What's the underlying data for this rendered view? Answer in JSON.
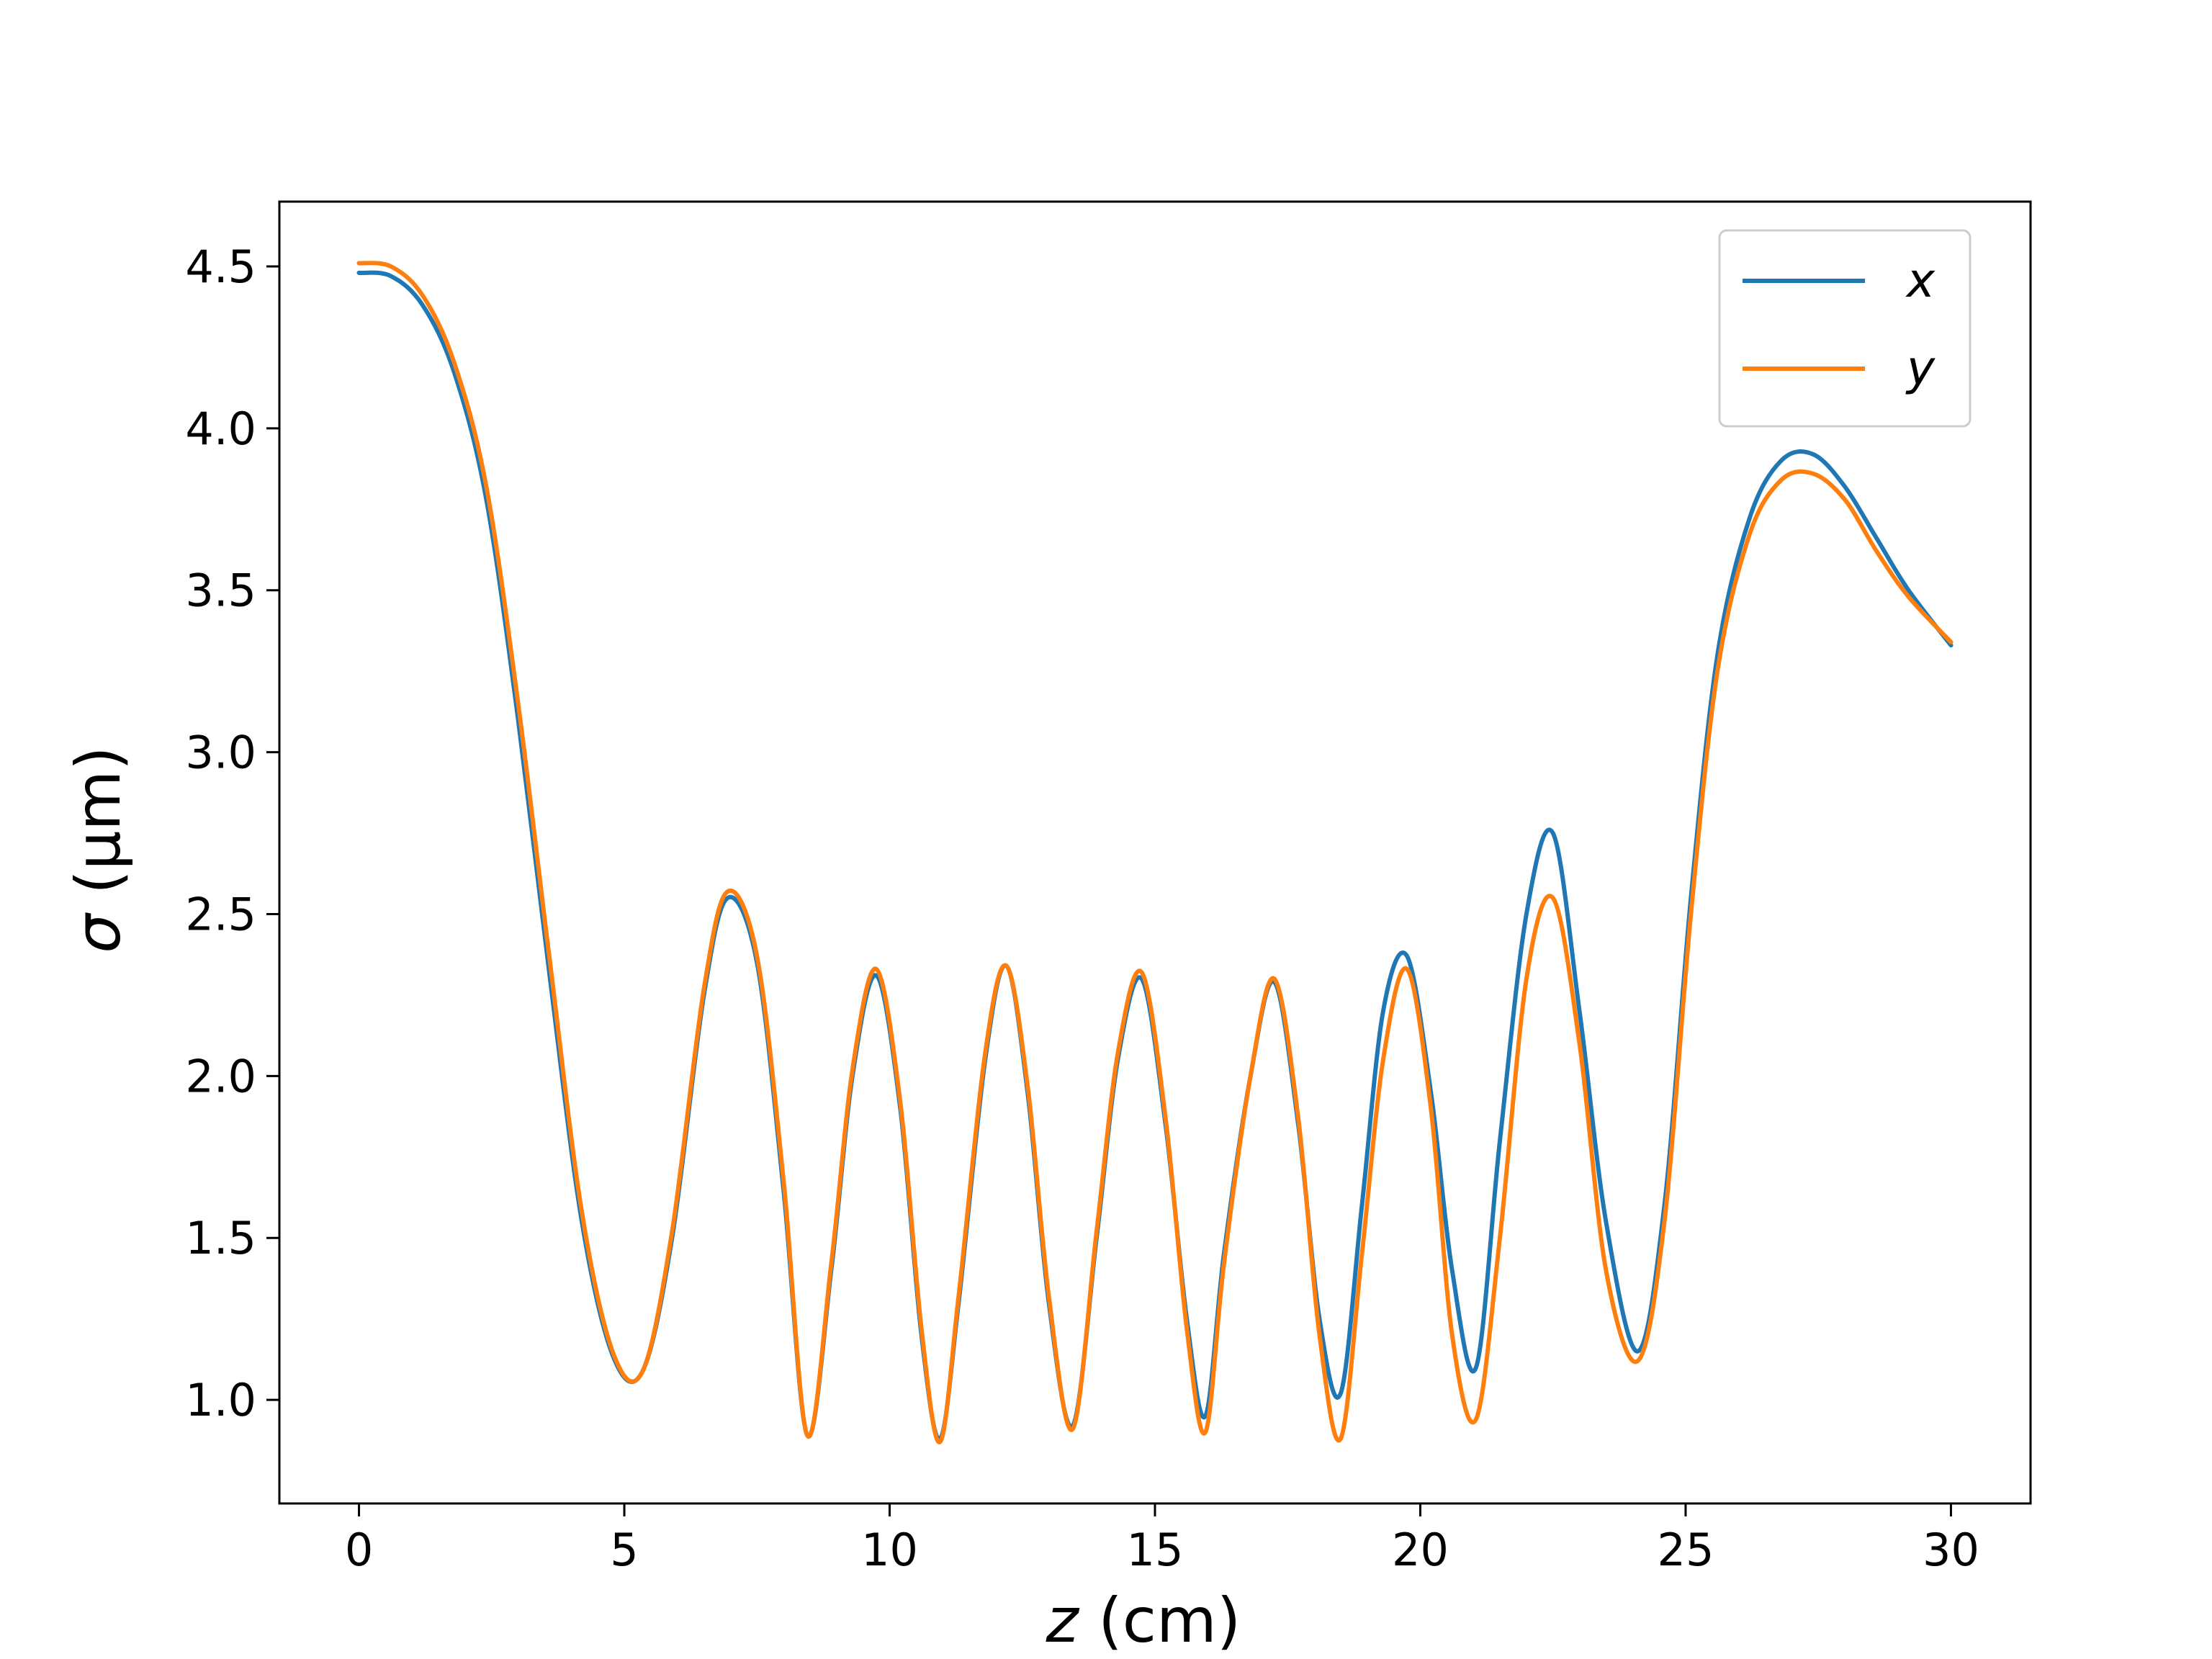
{
  "chart_data": {
    "type": "line",
    "title": "",
    "xlabel": {
      "var": "z",
      "unit": " (cm)"
    },
    "ylabel": {
      "var": "σ",
      "unit": " (μm)"
    },
    "xlim": [
      -1.5,
      31.5
    ],
    "ylim": [
      0.68,
      4.7
    ],
    "xticks": [
      0,
      5,
      10,
      15,
      20,
      25,
      30
    ],
    "yticks": [
      1.0,
      1.5,
      2.0,
      2.5,
      3.0,
      3.5,
      4.0,
      4.5
    ],
    "xtick_labels": [
      "0",
      "5",
      "10",
      "15",
      "20",
      "25",
      "30"
    ],
    "ytick_labels": [
      "1.0",
      "1.5",
      "2.0",
      "2.5",
      "3.0",
      "3.5",
      "4.0",
      "4.5"
    ],
    "grid": false,
    "legend_position": "top-right",
    "series": [
      {
        "name": "x",
        "color": "#1f77b4",
        "x": [
          0,
          0.6,
          1.2,
          1.8,
          2.4,
          3.0,
          3.6,
          4.2,
          4.8,
          5.35,
          5.9,
          6.5,
          6.95,
          7.5,
          8.0,
          8.45,
          8.9,
          9.3,
          9.75,
          10.2,
          10.6,
          10.95,
          11.3,
          11.8,
          12.2,
          12.6,
          13.0,
          13.45,
          13.9,
          14.3,
          14.75,
          15.2,
          15.6,
          15.95,
          16.3,
          16.8,
          17.25,
          17.7,
          18.1,
          18.5,
          18.9,
          19.3,
          19.75,
          20.2,
          20.6,
          21.05,
          21.5,
          22.0,
          22.5,
          23.0,
          23.5,
          24.1,
          24.6,
          25.1,
          25.6,
          26.2,
          26.8,
          27.4,
          28.0,
          28.6,
          29.2,
          30.0
        ],
        "values": [
          4.48,
          4.47,
          4.38,
          4.17,
          3.78,
          3.1,
          2.3,
          1.55,
          1.13,
          1.09,
          1.5,
          2.25,
          2.55,
          2.35,
          1.65,
          0.89,
          1.4,
          2.0,
          2.31,
          1.9,
          1.2,
          0.88,
          1.3,
          2.05,
          2.34,
          1.95,
          1.3,
          0.92,
          1.5,
          2.05,
          2.3,
          1.85,
          1.25,
          0.95,
          1.45,
          2.0,
          2.29,
          1.85,
          1.25,
          1.02,
          1.6,
          2.2,
          2.37,
          1.95,
          1.4,
          1.1,
          1.8,
          2.5,
          2.75,
          2.2,
          1.55,
          1.15,
          1.6,
          2.55,
          3.3,
          3.72,
          3.9,
          3.92,
          3.82,
          3.66,
          3.5,
          3.33
        ]
      },
      {
        "name": "y",
        "color": "#ff7f0e",
        "x": [
          0,
          0.6,
          1.2,
          1.8,
          2.4,
          3.0,
          3.6,
          4.2,
          4.8,
          5.35,
          5.9,
          6.5,
          6.95,
          7.5,
          8.0,
          8.45,
          8.9,
          9.3,
          9.75,
          10.2,
          10.6,
          10.95,
          11.3,
          11.8,
          12.2,
          12.6,
          13.0,
          13.45,
          13.9,
          14.3,
          14.75,
          15.2,
          15.6,
          15.95,
          16.3,
          16.8,
          17.25,
          17.7,
          18.1,
          18.5,
          18.9,
          19.3,
          19.75,
          20.2,
          20.6,
          21.05,
          21.5,
          22.0,
          22.5,
          23.0,
          23.5,
          24.1,
          24.6,
          25.1,
          25.6,
          26.2,
          26.8,
          27.4,
          28.0,
          28.6,
          29.2,
          30.0
        ],
        "values": [
          4.51,
          4.5,
          4.41,
          4.2,
          3.82,
          3.15,
          2.35,
          1.58,
          1.14,
          1.09,
          1.52,
          2.27,
          2.57,
          2.37,
          1.68,
          0.89,
          1.42,
          2.02,
          2.33,
          1.92,
          1.22,
          0.87,
          1.32,
          2.07,
          2.34,
          1.97,
          1.32,
          0.91,
          1.52,
          2.07,
          2.32,
          1.87,
          1.22,
          0.9,
          1.42,
          2.0,
          2.3,
          1.87,
          1.2,
          0.88,
          1.45,
          2.05,
          2.33,
          1.9,
          1.2,
          0.94,
          1.5,
          2.3,
          2.55,
          2.1,
          1.4,
          1.12,
          1.55,
          2.5,
          3.25,
          3.67,
          3.84,
          3.86,
          3.78,
          3.62,
          3.48,
          3.34
        ]
      }
    ]
  }
}
